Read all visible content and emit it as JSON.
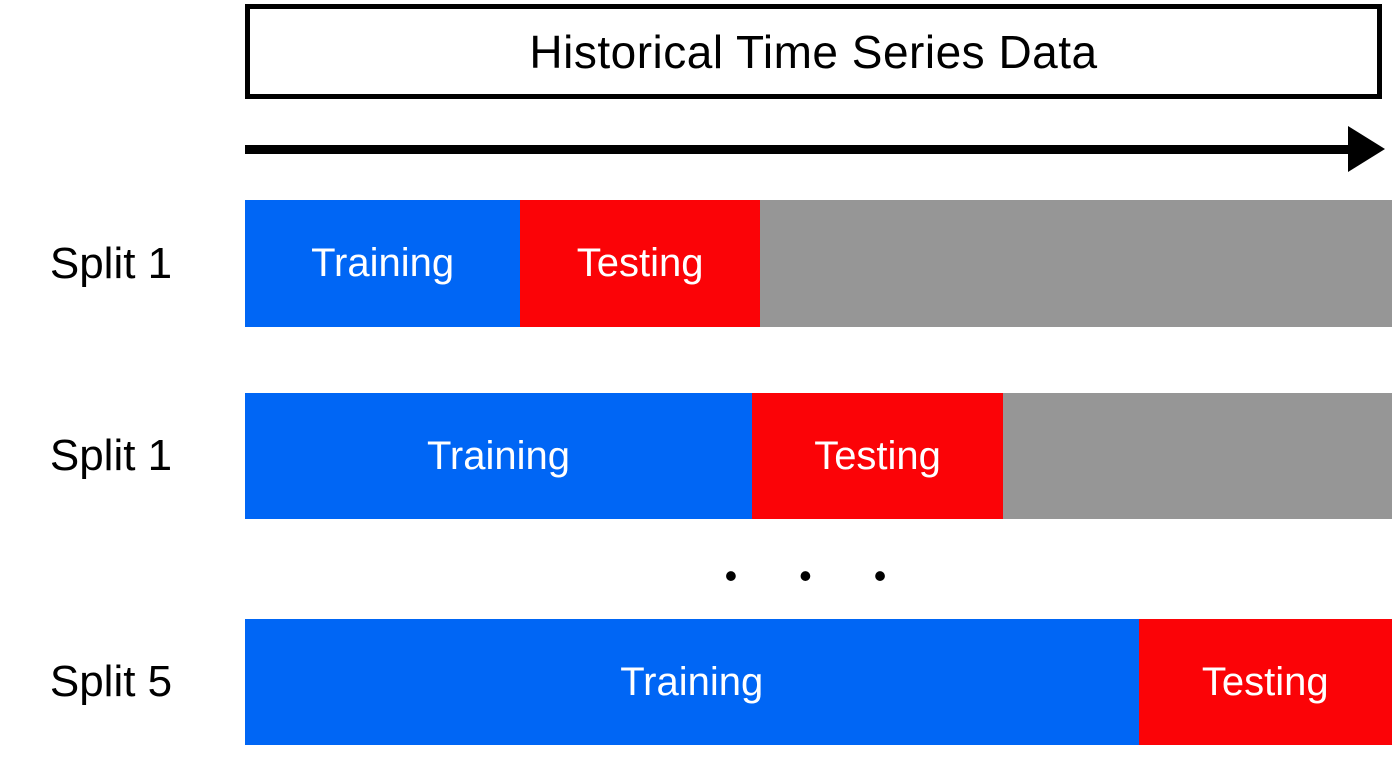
{
  "title": "Historical Time Series Data",
  "ellipsis": "• • •",
  "colors": {
    "training": "#0066F5",
    "testing": "#FB0307",
    "remainder": "#969696",
    "bar-text": "#FFFFFF",
    "ink": "#000000"
  },
  "timeline": {
    "direction": "right"
  },
  "splits": [
    {
      "label": "Split 1",
      "training_label": "Training",
      "testing_label": "Testing",
      "training_pct": 24,
      "testing_pct": 20.9,
      "remainder_pct": 55.1
    },
    {
      "label": "Split 1",
      "training_label": "Training",
      "testing_label": "Testing",
      "training_pct": 44.2,
      "testing_pct": 21.9,
      "remainder_pct": 33.9
    },
    {
      "label": "Split 5",
      "training_label": "Training",
      "testing_label": "Testing",
      "training_pct": 77.9,
      "testing_pct": 22.1,
      "remainder_pct": 0
    }
  ]
}
